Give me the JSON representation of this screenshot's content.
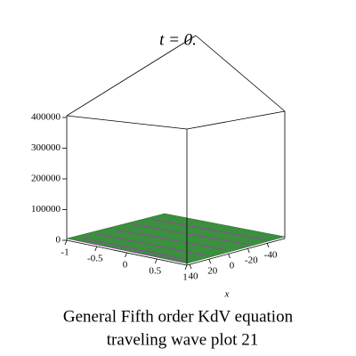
{
  "chart_data": {
    "type": "surface3d",
    "title": "t = 0.",
    "caption": [
      "General Fifth order  KdV  equation",
      "traveling wave plot 21"
    ],
    "zlim": [
      0,
      400000
    ],
    "zticks": [
      0,
      100000,
      200000,
      300000,
      400000
    ],
    "ylim": [
      -1,
      1
    ],
    "yticks": [
      -1,
      -0.5,
      0,
      0.5,
      1
    ],
    "xlim": [
      40,
      -40
    ],
    "xticks": [
      40,
      20,
      0,
      -20,
      -40
    ],
    "xlabel": "x"
  }
}
